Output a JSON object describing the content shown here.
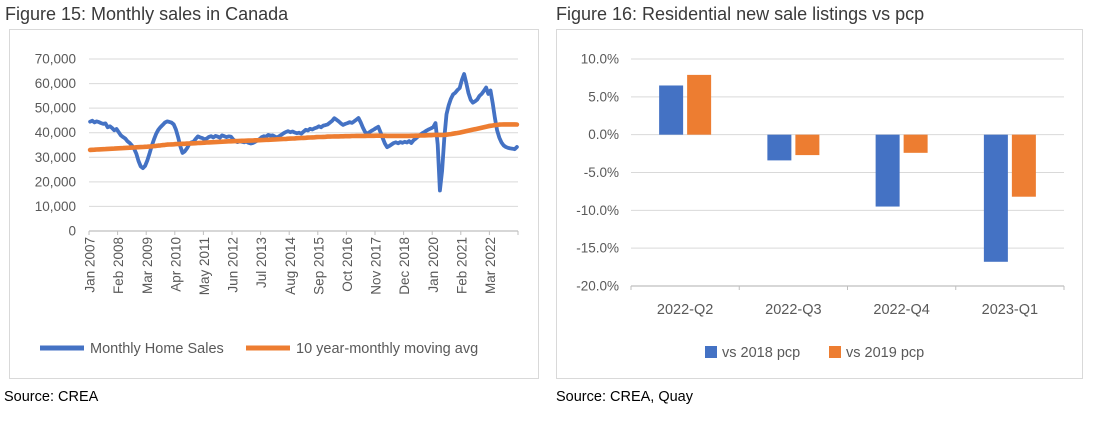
{
  "figure15": {
    "title": "Figure 15: Monthly sales in Canada",
    "source": "Source: CREA"
  },
  "figure16": {
    "title": "Figure 16: Residential new sale listings vs pcp",
    "source": "Source: CREA, Quay"
  },
  "colors": {
    "series_blue": "#4472C4",
    "series_orange": "#ED7D31",
    "gridline": "#D9D9D9",
    "axis_line": "#BFBFBF",
    "axis_text": "#595959",
    "title_text": "#3A3A3A"
  },
  "chart_data": [
    {
      "type": "line",
      "title": "Figure 15: Monthly sales in Canada",
      "xlabel": "",
      "ylabel": "",
      "ylim": [
        0,
        70000
      ],
      "y_ticks": [
        0,
        10000,
        20000,
        30000,
        40000,
        50000,
        60000,
        70000
      ],
      "y_tick_labels": [
        "0",
        "10,000",
        "20,000",
        "30,000",
        "40,000",
        "50,000",
        "60,000",
        "70,000"
      ],
      "x_tick_labels": [
        "Jan 2007",
        "Feb 2008",
        "Mar 2009",
        "Apr 2010",
        "May 2011",
        "Jun 2012",
        "Jul 2013",
        "Aug 2014",
        "Sep 2015",
        "Oct 2016",
        "Nov 2017",
        "Dec 2018",
        "Jan 2020",
        "Feb 2021",
        "Mar 2022"
      ],
      "x_tick_month_indices": [
        0,
        13,
        26,
        39,
        52,
        65,
        78,
        91,
        104,
        117,
        130,
        143,
        156,
        169,
        182
      ],
      "x_range": "Jan 2007 - Mar 2023 (monthly)",
      "grid": true,
      "legend_position": "bottom",
      "series": [
        {
          "name": "Monthly Home Sales",
          "color": "#4472C4",
          "values": [
            44500,
            44900,
            44200,
            44600,
            44300,
            43900,
            43600,
            43800,
            42200,
            42600,
            41900,
            41000,
            41500,
            40200,
            38900,
            38200,
            37600,
            36500,
            35800,
            34800,
            33500,
            31500,
            28500,
            26300,
            25600,
            26500,
            28700,
            31500,
            34600,
            37200,
            39500,
            41200,
            42300,
            43200,
            44100,
            44600,
            44400,
            44100,
            43400,
            41300,
            38200,
            34500,
            31800,
            32400,
            33600,
            35200,
            36100,
            36300,
            37500,
            38500,
            38100,
            37800,
            37300,
            37600,
            38300,
            38600,
            38100,
            38700,
            38400,
            38000,
            38900,
            38600,
            38200,
            38500,
            38400,
            37300,
            36600,
            36200,
            36500,
            36300,
            36100,
            36400,
            35900,
            35600,
            35800,
            36300,
            36800,
            37400,
            38200,
            38600,
            38400,
            39100,
            38800,
            38900,
            38400,
            38100,
            38600,
            39200,
            39800,
            40300,
            40600,
            40200,
            40500,
            40100,
            39800,
            40000,
            39600,
            40400,
            41200,
            40900,
            41600,
            41300,
            41800,
            42100,
            42600,
            42200,
            42900,
            43100,
            43400,
            44100,
            44800,
            45900,
            45300,
            44600,
            43800,
            43200,
            43600,
            43900,
            44300,
            44000,
            44600,
            45300,
            46000,
            44200,
            42100,
            40300,
            39600,
            40200,
            40800,
            41300,
            41900,
            42400,
            40200,
            37800,
            35600,
            34100,
            34600,
            35200,
            35800,
            36100,
            35700,
            36200,
            35900,
            36300,
            36000,
            36600,
            35800,
            36900,
            37600,
            38400,
            39100,
            39800,
            40300,
            40900,
            41400,
            41800,
            42300,
            43900,
            35200,
            16500,
            24500,
            37800,
            47500,
            51200,
            53800,
            55600,
            56300,
            57400,
            58200,
            61500,
            63900,
            60200,
            56100,
            53400,
            52200,
            52800,
            53500,
            55000,
            55800,
            57000,
            58400,
            55800,
            57200,
            52000,
            46000,
            41000,
            38000,
            36000,
            34800,
            34200,
            33800,
            33600,
            33500,
            33300,
            34200
          ]
        },
        {
          "name": "10 year-monthly moving avg",
          "color": "#ED7D31",
          "values": [
            33000,
            33050,
            33100,
            33150,
            33200,
            33250,
            33300,
            33350,
            33400,
            33450,
            33500,
            33550,
            33600,
            33650,
            33700,
            33750,
            33800,
            33850,
            33900,
            33950,
            34000,
            34050,
            34100,
            34150,
            34200,
            34250,
            34300,
            34400,
            34450,
            34550,
            34650,
            34750,
            34850,
            34950,
            35050,
            35150,
            35200,
            35250,
            35300,
            35350,
            35400,
            35450,
            35500,
            35500,
            35550,
            35600,
            35650,
            35700,
            35750,
            35800,
            35850,
            35900,
            35950,
            36000,
            36050,
            36100,
            36150,
            36200,
            36250,
            36300,
            36350,
            36400,
            36450,
            36500,
            36500,
            36550,
            36600,
            36600,
            36650,
            36700,
            36700,
            36750,
            36800,
            36800,
            36850,
            36900,
            36900,
            36950,
            37000,
            37050,
            37100,
            37100,
            37150,
            37200,
            37250,
            37300,
            37350,
            37400,
            37450,
            37500,
            37550,
            37600,
            37650,
            37700,
            37750,
            37800,
            37850,
            37900,
            37950,
            38000,
            38050,
            38100,
            38150,
            38200,
            38250,
            38250,
            38300,
            38350,
            38400,
            38400,
            38450,
            38500,
            38500,
            38500,
            38550,
            38550,
            38600,
            38600,
            38600,
            38650,
            38650,
            38700,
            38700,
            38700,
            38700,
            38700,
            38750,
            38750,
            38750,
            38750,
            38800,
            38800,
            38800,
            38750,
            38750,
            38700,
            38700,
            38700,
            38700,
            38700,
            38700,
            38700,
            38700,
            38700,
            38700,
            38700,
            38750,
            38750,
            38800,
            38800,
            38850,
            38850,
            38900,
            38950,
            39000,
            39000,
            39050,
            39100,
            39100,
            39050,
            39050,
            39100,
            39200,
            39300,
            39450,
            39600,
            39750,
            39900,
            40050,
            40250,
            40450,
            40650,
            40850,
            41050,
            41250,
            41450,
            41650,
            41850,
            42050,
            42250,
            42450,
            42650,
            42800,
            42950,
            43100,
            43200,
            43300,
            43350,
            43400,
            43400,
            43400,
            43400,
            43400,
            43400,
            43350
          ]
        }
      ]
    },
    {
      "type": "bar",
      "title": "Figure 16: Residential new sale listings vs pcp",
      "categories": [
        "2022-Q2",
        "2022-Q3",
        "2022-Q4",
        "2023-Q1"
      ],
      "series": [
        {
          "name": "vs 2018 pcp",
          "color": "#4472C4",
          "values": [
            6.5,
            -3.4,
            -9.5,
            -16.8
          ]
        },
        {
          "name": "vs 2019 pcp",
          "color": "#ED7D31",
          "values": [
            7.9,
            -2.7,
            -2.4,
            -8.2
          ]
        }
      ],
      "ylim": [
        -20,
        10
      ],
      "y_ticks": [
        10,
        5,
        0,
        -5,
        -10,
        -15,
        -20
      ],
      "y_tick_labels": [
        "10.0%",
        "5.0%",
        "0.0%",
        "-5.0%",
        "-10.0%",
        "-15.0%",
        "-20.0%"
      ],
      "grid": true,
      "legend_position": "bottom"
    }
  ]
}
